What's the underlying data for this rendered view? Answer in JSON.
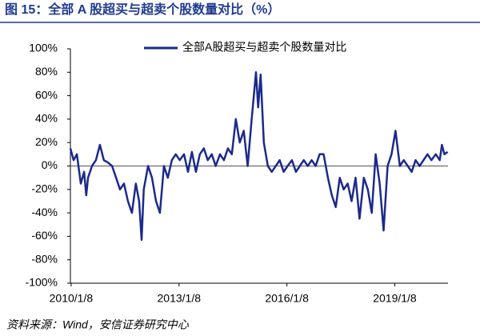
{
  "chart_data": {
    "type": "line",
    "title": "图 15：全部 A 股超买与超卖个股数量对比（%）",
    "source": "资料来源：Wind，安信证券研究中心",
    "x": [
      2010.0,
      2010.09,
      2010.18,
      2010.29,
      2010.38,
      2010.44,
      2010.49,
      2010.6,
      2010.71,
      2010.82,
      2010.93,
      2011.04,
      2011.16,
      2011.27,
      2011.38,
      2011.49,
      2011.6,
      2011.71,
      2011.82,
      2011.91,
      2011.98,
      2012.04,
      2012.16,
      2012.27,
      2012.38,
      2012.49,
      2012.6,
      2012.71,
      2012.82,
      2012.93,
      2013.04,
      2013.16,
      2013.27,
      2013.38,
      2013.49,
      2013.6,
      2013.71,
      2013.82,
      2013.93,
      2014.04,
      2014.16,
      2014.27,
      2014.38,
      2014.49,
      2014.6,
      2014.71,
      2014.82,
      2014.93,
      2015.04,
      2015.16,
      2015.22,
      2015.29,
      2015.38,
      2015.49,
      2015.6,
      2015.71,
      2015.82,
      2015.93,
      2016.04,
      2016.16,
      2016.27,
      2016.38,
      2016.49,
      2016.6,
      2016.71,
      2016.82,
      2016.93,
      2017.04,
      2017.16,
      2017.27,
      2017.38,
      2017.49,
      2017.6,
      2017.71,
      2017.82,
      2017.93,
      2018.04,
      2018.16,
      2018.27,
      2018.38,
      2018.49,
      2018.6,
      2018.71,
      2018.82,
      2018.93,
      2019.04,
      2019.16,
      2019.27,
      2019.38,
      2019.49,
      2019.6,
      2019.71,
      2019.82,
      2019.93,
      2020.04,
      2020.16,
      2020.27,
      2020.33,
      2020.4,
      2020.49
    ],
    "series": [
      {
        "name": "全部A股超买与超卖个股数量对比",
        "color": "#1c2a8c",
        "values": [
          15,
          5,
          10,
          -15,
          -5,
          -25,
          -10,
          0,
          5,
          18,
          5,
          3,
          0,
          -10,
          -20,
          -15,
          -30,
          -40,
          -15,
          -30,
          -63,
          -20,
          0,
          -10,
          -30,
          -40,
          0,
          -10,
          5,
          10,
          5,
          10,
          -5,
          12,
          -5,
          10,
          15,
          5,
          10,
          0,
          10,
          5,
          15,
          10,
          40,
          20,
          30,
          0,
          40,
          80,
          50,
          78,
          20,
          0,
          -5,
          0,
          5,
          -5,
          0,
          5,
          -5,
          0,
          5,
          0,
          5,
          0,
          10,
          10,
          -10,
          -25,
          -35,
          -10,
          -20,
          -15,
          -30,
          -10,
          -45,
          -10,
          -20,
          -40,
          10,
          -15,
          -55,
          0,
          10,
          30,
          0,
          5,
          0,
          -5,
          5,
          0,
          5,
          10,
          5,
          10,
          5,
          18,
          10,
          12
        ]
      }
    ],
    "xlim": [
      2010.0,
      2020.5
    ],
    "xticks": [
      {
        "value": 2010.02,
        "label": "2010/1/8"
      },
      {
        "value": 2013.02,
        "label": "2013/1/8"
      },
      {
        "value": 2016.02,
        "label": "2016/1/8"
      },
      {
        "value": 2019.02,
        "label": "2019/1/8"
      }
    ],
    "ylim": [
      -100,
      100
    ],
    "yticks": [
      {
        "value": -100,
        "label": "-100%"
      },
      {
        "value": -80,
        "label": "-80%"
      },
      {
        "value": -60,
        "label": "-60%"
      },
      {
        "value": -40,
        "label": "-40%"
      },
      {
        "value": -20,
        "label": "-20%"
      },
      {
        "value": 0,
        "label": "0%"
      },
      {
        "value": 20,
        "label": "20%"
      },
      {
        "value": 40,
        "label": "40%"
      },
      {
        "value": 60,
        "label": "60%"
      },
      {
        "value": 80,
        "label": "80%"
      },
      {
        "value": 100,
        "label": "100%"
      }
    ],
    "grid": false,
    "legend": "top"
  }
}
